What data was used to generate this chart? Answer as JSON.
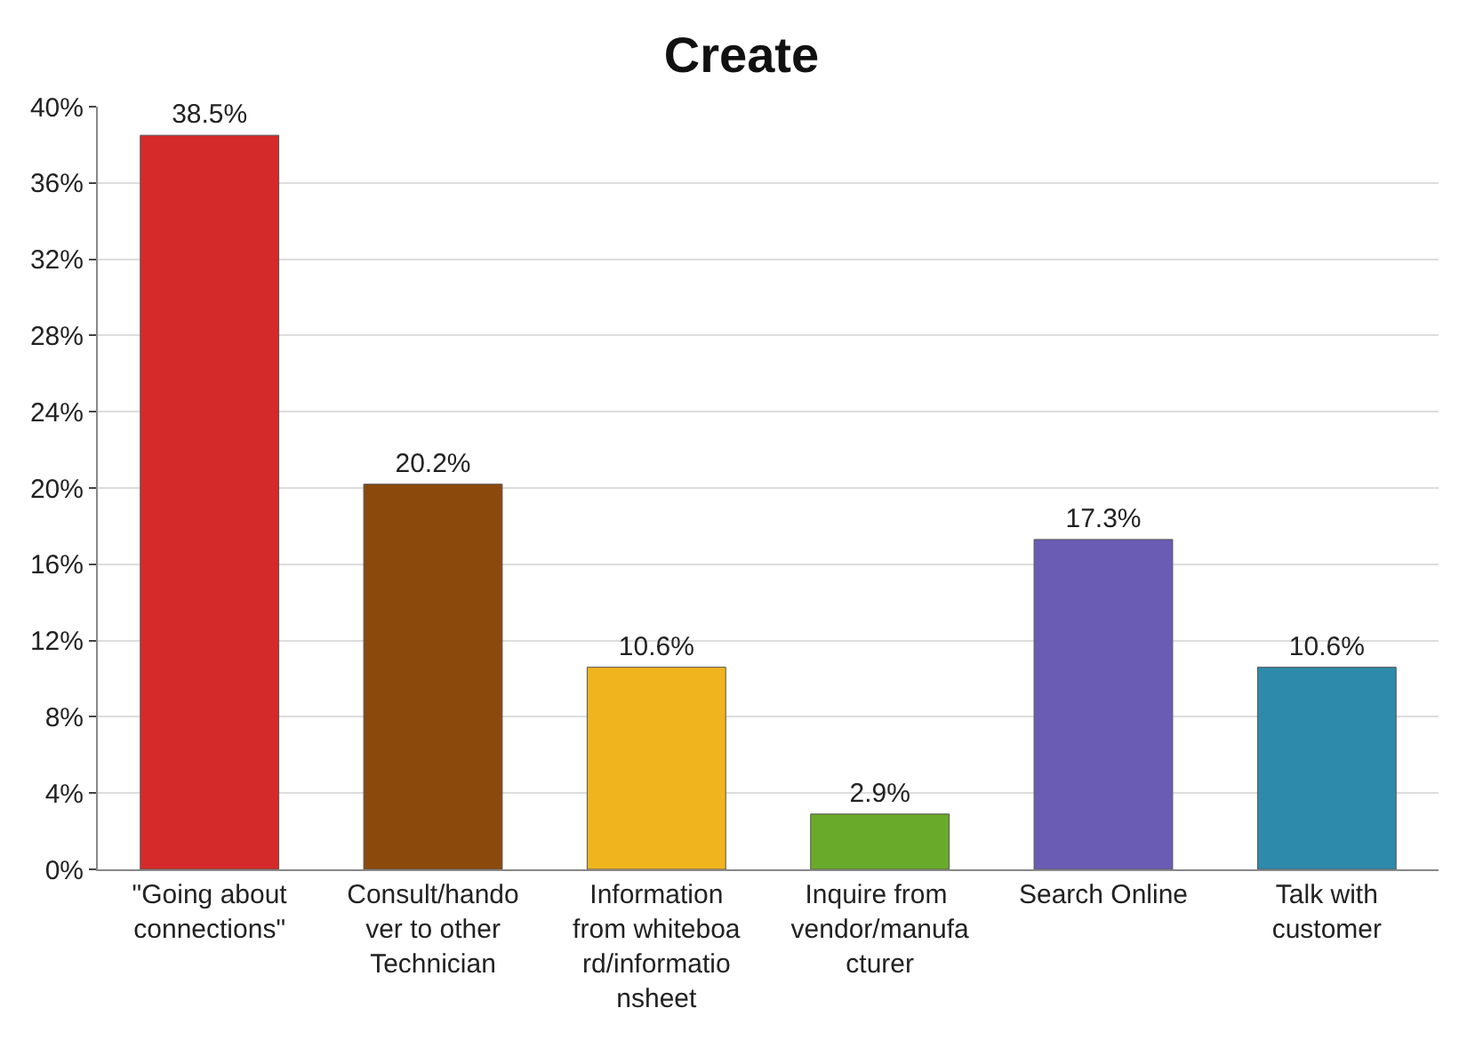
{
  "chart_data": {
    "type": "bar",
    "title": "Create",
    "categories": [
      "\"Going about connections\"",
      "Consult/handover to other Technician",
      "Information from whiteboard/informationsheet",
      "Inquire from vendor/manufacturer",
      "Search Online",
      "Talk with customer"
    ],
    "values": [
      38.5,
      20.2,
      10.6,
      2.9,
      17.3,
      10.6
    ],
    "value_labels": [
      "38.5%",
      "20.2%",
      "10.6%",
      "2.9%",
      "17.3%",
      "10.6%"
    ],
    "colors": [
      "#d42a2a",
      "#8b4a0c",
      "#f0b41e",
      "#6aaa2a",
      "#6a5cb4",
      "#2e8aaa"
    ],
    "ylim": [
      0,
      40
    ],
    "yticks": [
      {
        "value": 0,
        "label": "0%"
      },
      {
        "value": 4,
        "label": "4%"
      },
      {
        "value": 8,
        "label": "8%"
      },
      {
        "value": 12,
        "label": "12%"
      },
      {
        "value": 16,
        "label": "16%"
      },
      {
        "value": 20,
        "label": "20%"
      },
      {
        "value": 24,
        "label": "24%"
      },
      {
        "value": 28,
        "label": "28%"
      },
      {
        "value": 32,
        "label": "32%"
      },
      {
        "value": 36,
        "label": "36%"
      },
      {
        "value": 40,
        "label": "40%"
      }
    ],
    "grid": "y"
  }
}
